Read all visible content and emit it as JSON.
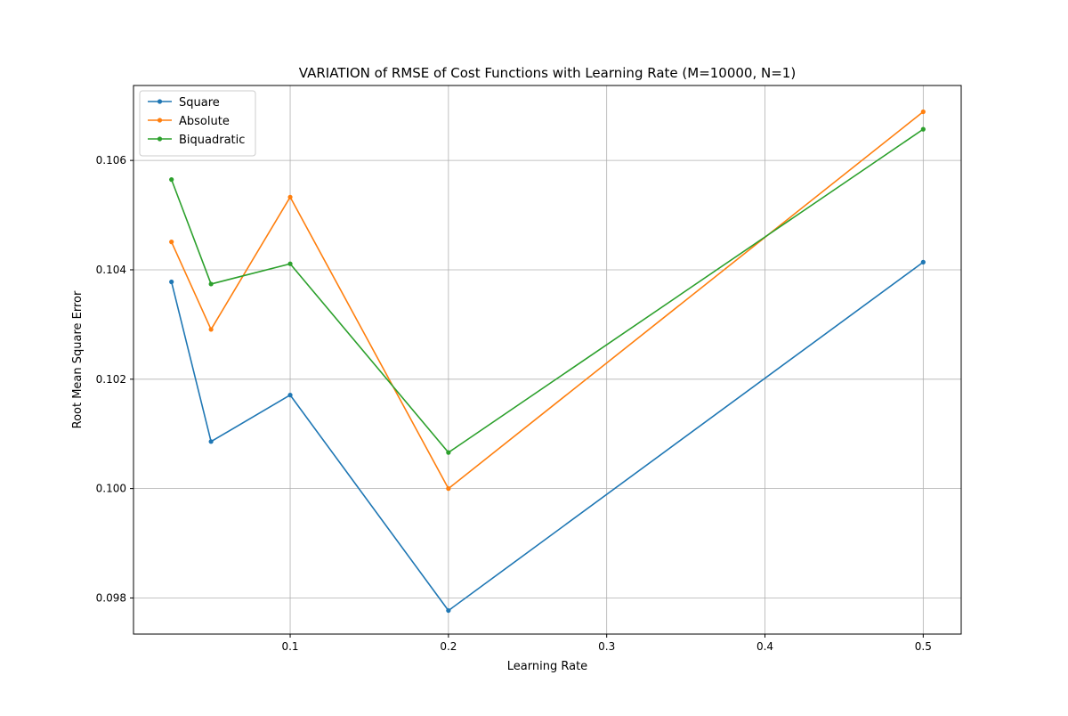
{
  "chart_data": {
    "type": "line",
    "title": "VARIATION of RMSE of Cost Functions with Learning Rate (M=10000, N=1)",
    "xlabel": "Learning Rate",
    "ylabel": "Root Mean Square Error",
    "x": [
      0.025,
      0.05,
      0.1,
      0.2,
      0.5
    ],
    "xlim": [
      0.001,
      0.524
    ],
    "ylim": [
      0.09734,
      0.10737
    ],
    "xticks": [
      0.1,
      0.2,
      0.3,
      0.4,
      0.5
    ],
    "xtick_labels": [
      "0.1",
      "0.2",
      "0.3",
      "0.4",
      "0.5"
    ],
    "yticks": [
      0.098,
      0.1,
      0.102,
      0.104,
      0.106
    ],
    "ytick_labels": [
      "0.098",
      "0.100",
      "0.102",
      "0.104",
      "0.106"
    ],
    "grid": true,
    "legend_position": "top-left",
    "series": [
      {
        "name": "Square",
        "color": "#1f77b4",
        "values": [
          0.10378,
          0.10086,
          0.10171,
          0.09777,
          0.10414
        ]
      },
      {
        "name": "Absolute",
        "color": "#ff7f0e",
        "values": [
          0.10451,
          0.10291,
          0.10533,
          0.1,
          0.10689
        ]
      },
      {
        "name": "Biquadratic",
        "color": "#2ca02c",
        "values": [
          0.10565,
          0.10374,
          0.10411,
          0.10066,
          0.10657
        ]
      }
    ]
  }
}
